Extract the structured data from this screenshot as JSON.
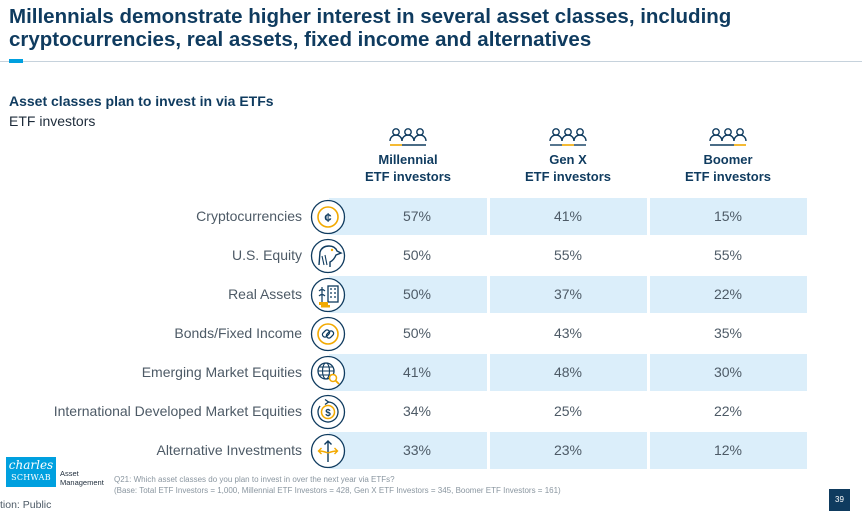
{
  "header": {
    "title": "Millennials demonstrate higher interest in several asset classes, including cryptocurrencies, real assets, fixed income and alternatives",
    "subtitle": "Asset classes plan to invest in via ETFs",
    "subsubtitle": "ETF investors"
  },
  "columns": [
    {
      "line1": "Millennial",
      "line2": "ETF investors",
      "icon": "people-group-icon"
    },
    {
      "line1": "Gen X",
      "line2": "ETF investors",
      "icon": "people-group-icon"
    },
    {
      "line1": "Boomer",
      "line2": "ETF investors",
      "icon": "people-group-icon"
    }
  ],
  "rows": [
    {
      "label": "Cryptocurrencies",
      "icon": "crypto-coin-icon",
      "values": [
        "57%",
        "41%",
        "15%"
      ]
    },
    {
      "label": "U.S. Equity",
      "icon": "eagle-icon",
      "values": [
        "50%",
        "55%",
        "55%"
      ]
    },
    {
      "label": "Real Assets",
      "icon": "real-assets-icon",
      "values": [
        "50%",
        "37%",
        "22%"
      ]
    },
    {
      "label": "Bonds/Fixed Income",
      "icon": "bond-link-icon",
      "values": [
        "50%",
        "43%",
        "35%"
      ]
    },
    {
      "label": "Emerging Market Equities",
      "icon": "globe-search-icon",
      "values": [
        "41%",
        "48%",
        "30%"
      ]
    },
    {
      "label": "International Developed Market Equities",
      "icon": "dollar-cycle-icon",
      "values": [
        "34%",
        "25%",
        "22%"
      ]
    },
    {
      "label": "Alternative Investments",
      "icon": "diverging-arrows-icon",
      "values": [
        "33%",
        "23%",
        "12%"
      ]
    }
  ],
  "footer": {
    "logo_line1": "charles",
    "logo_line2": "SCHWAB",
    "logo_side1": "Asset",
    "logo_side2": "Management",
    "footnote1": "Q21: Which asset classes do you plan to invest in over the next year via ETFs?",
    "footnote2": "(Base: Total ETF Investors = 1,000, Millennial ETF Investors = 428, Gen X ETF Investors = 345, Boomer ETF Investors = 161)",
    "classification": "tion: Public",
    "page_number": "39"
  },
  "colors": {
    "navy": "#0f3b5f",
    "accent_blue": "#00a0df",
    "row_shade": "#dbeefa",
    "orange": "#f2a900"
  }
}
